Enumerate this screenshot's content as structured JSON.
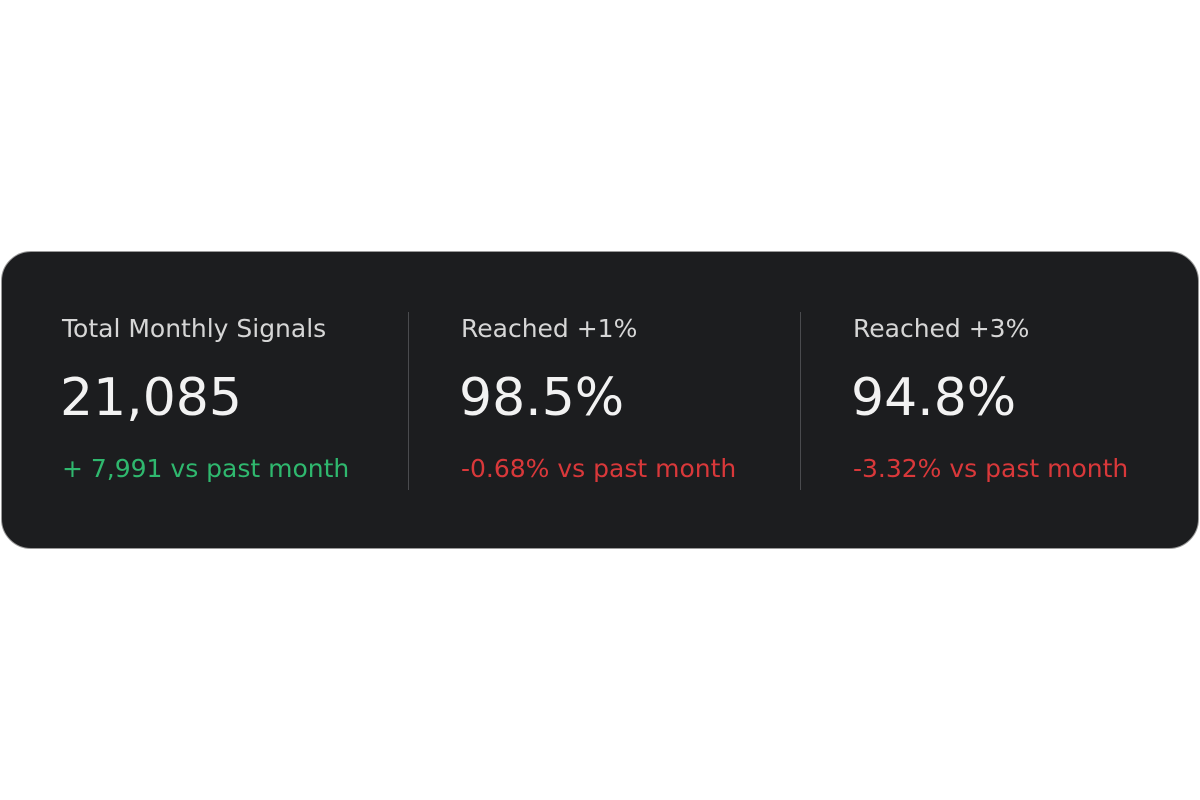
{
  "stats": [
    {
      "label": "Total Monthly Signals",
      "value": "21,085",
      "delta": "+ 7,991 vs past month",
      "delta_color": "#2fb86e"
    },
    {
      "label": "Reached +1%",
      "value": "98.5%",
      "delta": "-0.68% vs past month",
      "delta_color": "#d9383a"
    },
    {
      "label": "Reached +3%",
      "value": "94.8%",
      "delta": "-3.32% vs past month",
      "delta_color": "#d9383a"
    }
  ]
}
